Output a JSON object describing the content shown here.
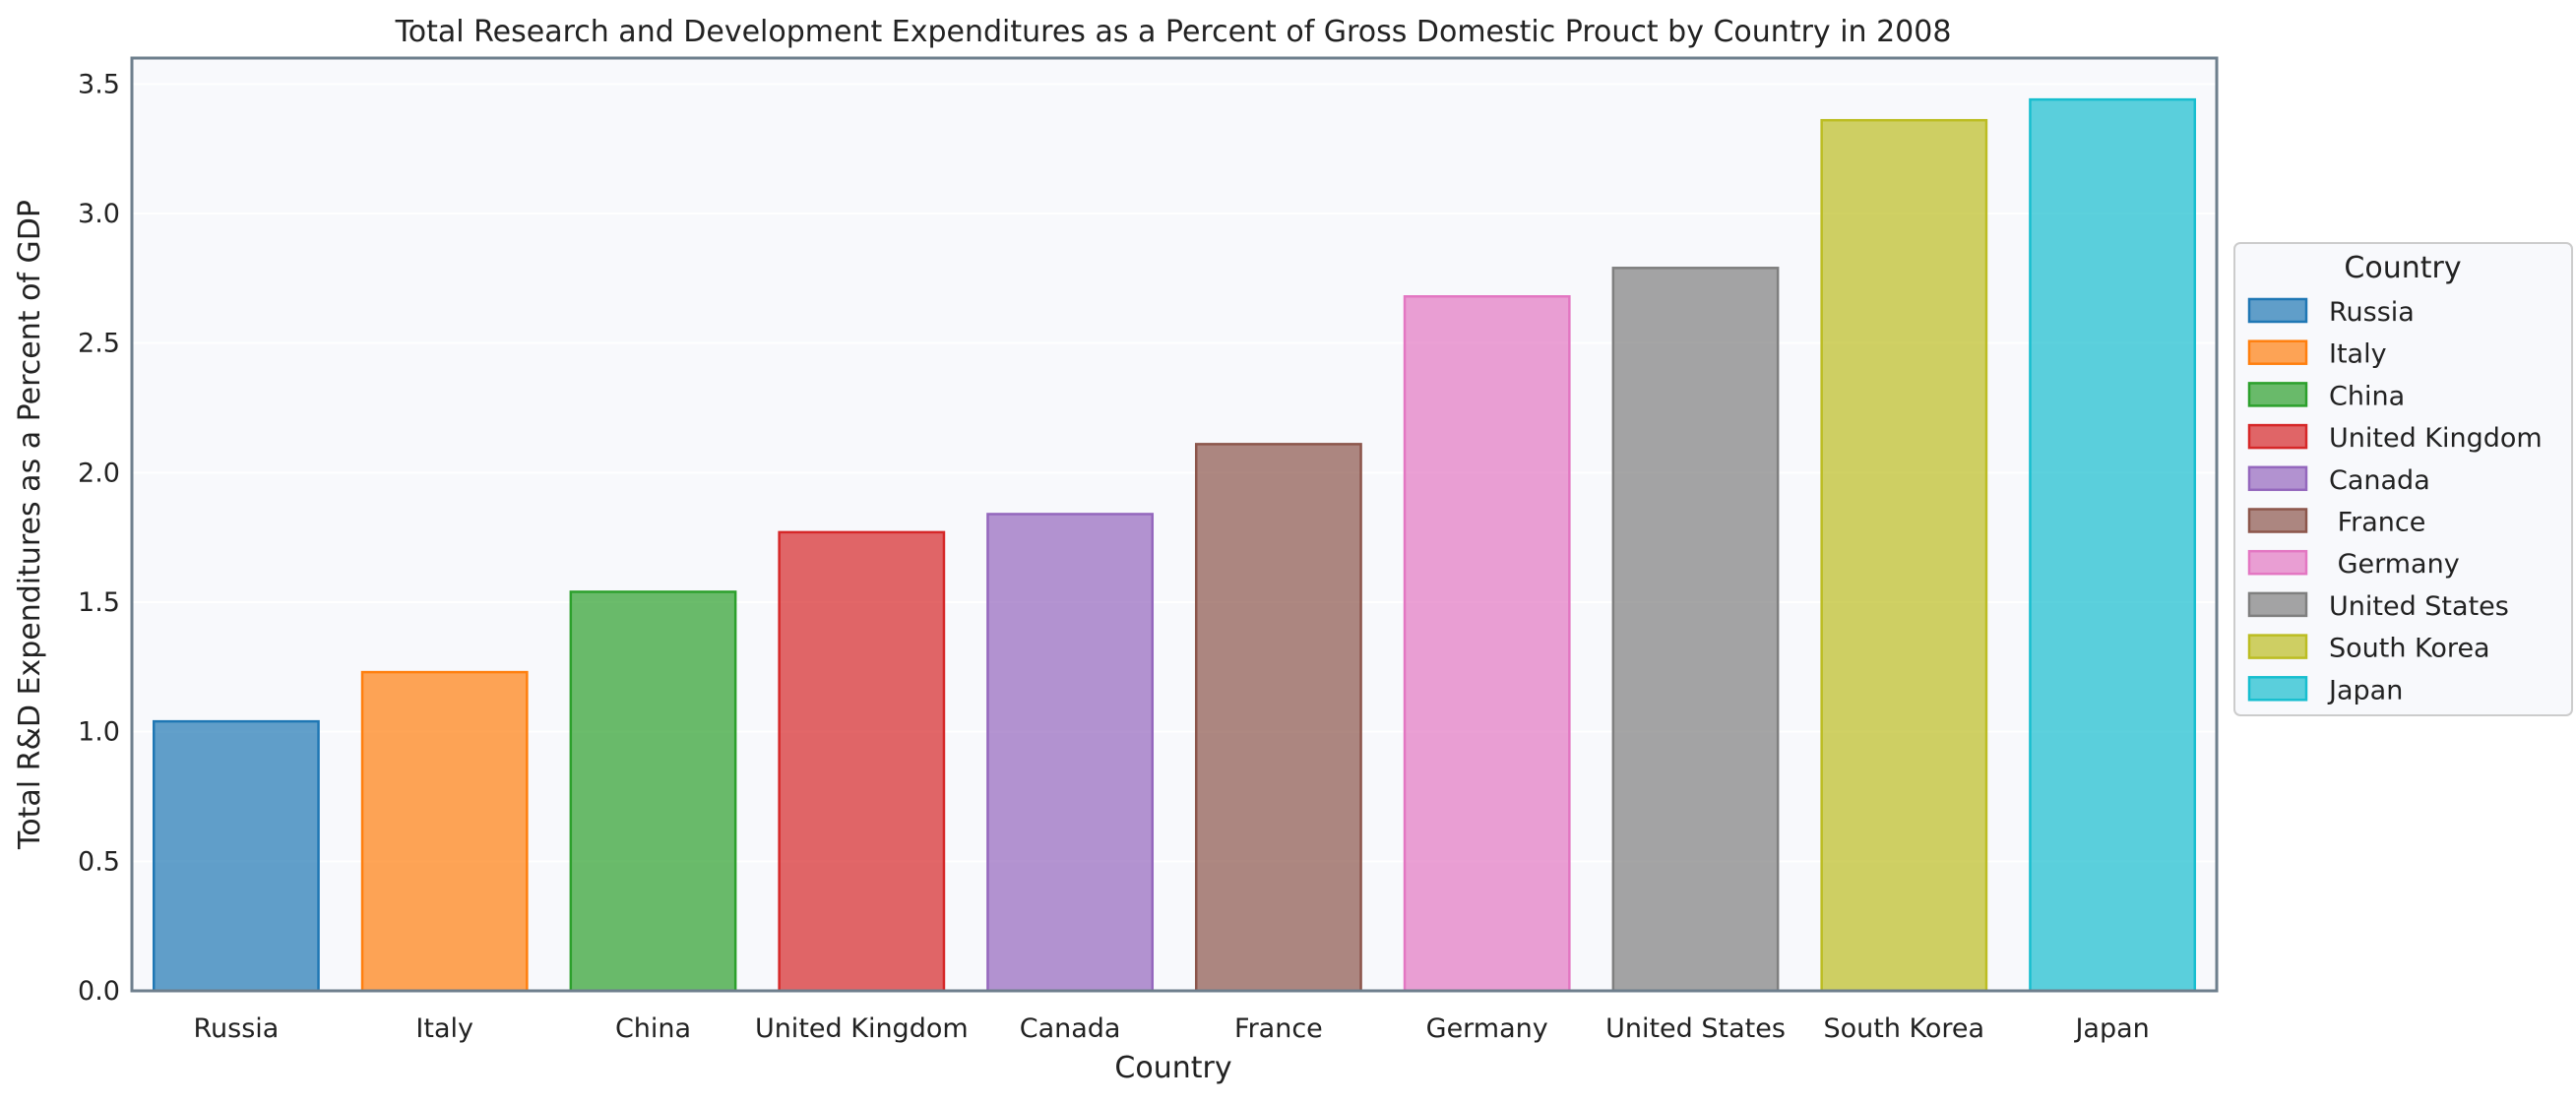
{
  "chart_data": {
    "type": "bar",
    "title": "Total Research and Development Expenditures as a Percent of Gross Domestic Prouct by Country in 2008",
    "xlabel": "Country",
    "ylabel": "Total R&D Expenditures as a Percent of GDP",
    "categories": [
      "Russia",
      "Italy",
      "China",
      "United Kingdom",
      "Canada",
      "France",
      "Germany",
      "United States",
      "South Korea",
      "Japan"
    ],
    "values": [
      1.04,
      1.23,
      1.54,
      1.77,
      1.84,
      2.11,
      2.68,
      2.79,
      3.36,
      3.44
    ],
    "colors": [
      "#1f77b4",
      "#ff7f0e",
      "#2ca02c",
      "#d62728",
      "#9467bd",
      "#8c564b",
      "#e377c2",
      "#7f7f7f",
      "#bcbd22",
      "#17becf"
    ],
    "ylim": [
      0,
      3.6
    ],
    "yticks": [
      "0.0",
      "0.5",
      "1.0",
      "1.5",
      "2.0",
      "2.5",
      "3.0",
      "3.5"
    ],
    "grid": true,
    "legend": {
      "title": "Country",
      "placement": "center-right-outside",
      "entries": [
        "Russia",
        "Italy",
        "China",
        "United Kingdom",
        "Canada",
        " France",
        " Germany",
        "United States",
        "South Korea",
        "Japan"
      ]
    }
  }
}
